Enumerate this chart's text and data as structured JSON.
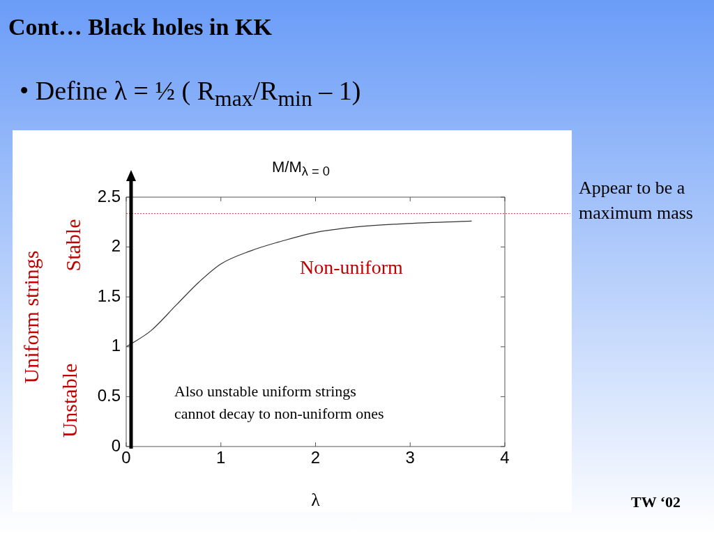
{
  "chart_data": {
    "type": "line",
    "title": "Cont… Black holes in KK",
    "subtitle": "• Define λ = ½ ( R$_{max}$/R$_{min}$ – 1)",
    "xlabel": "λ",
    "ylabel": "M/M$_{λ = 0}$",
    "x": [
      0,
      0.26,
      0.53,
      0.77,
      1.0,
      1.31,
      1.61,
      1.97,
      2.42,
      2.87,
      3.65
    ],
    "series": [
      {
        "color": "#333333",
        "values": [
          1.0,
          1.16,
          1.42,
          1.65,
          1.83,
          1.96,
          2.05,
          2.14,
          2.2,
          2.23,
          2.26
        ]
      }
    ],
    "xlim": [
      0,
      4
    ],
    "xticks": [
      0,
      1,
      2,
      3,
      4
    ],
    "ylim": [
      0,
      2.5
    ],
    "yticks": [
      0,
      0.5,
      1,
      1.5,
      2,
      2.5
    ],
    "ref_lines": [
      {
        "axis": "y",
        "value": 2.335,
        "color": "#e03030",
        "line_style": "dotted"
      }
    ],
    "grid": false,
    "legend": false,
    "marker": "none",
    "line_style": "solid",
    "annotations": [
      "Uniform strings",
      "Stable",
      "Unstable",
      "Non-uniform",
      "Also unstable uniform strings\ncannot decay to non-uniform ones",
      "Appear to be a maximum mass",
      "TW ‘02"
    ]
  }
}
